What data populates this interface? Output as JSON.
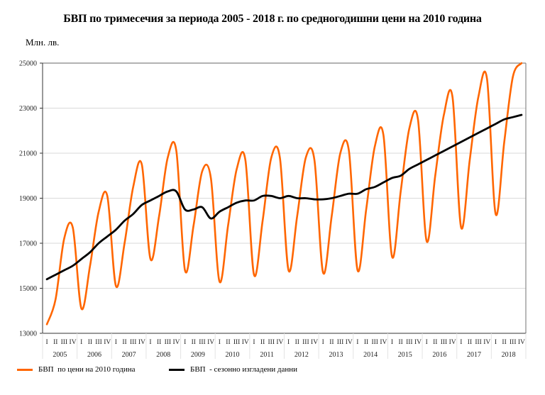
{
  "chart_data": {
    "type": "line",
    "title": "БВП по тримесечия за периода 2005 - 2018 г. по средногодишни цени на 2010 година",
    "ylabel": "Млн. лв.",
    "xlabel": "",
    "ylim": [
      13000,
      25000
    ],
    "yticks": [
      13000,
      15000,
      17000,
      19000,
      21000,
      23000,
      25000
    ],
    "ytick_labels": [
      "13000",
      "15000",
      "17000",
      "19000",
      "21000",
      "23000",
      "25000"
    ],
    "grid": true,
    "legend_position": "bottom",
    "quarter_labels": [
      "I",
      "II",
      "III",
      "IV"
    ],
    "years": [
      "2005",
      "2006",
      "2007",
      "2008",
      "2009",
      "2010",
      "2011",
      "2012",
      "2013",
      "2014",
      "2015",
      "2016",
      "2017",
      "2018"
    ],
    "series": [
      {
        "name": "БВП  по цени на 2010 година",
        "color": "#ff6600",
        "values": [
          13400,
          14500,
          17200,
          17700,
          14100,
          16000,
          18400,
          19100,
          15100,
          17000,
          19500,
          20500,
          16300,
          18200,
          20800,
          21100,
          15800,
          17800,
          20200,
          19900,
          15300,
          17800,
          20300,
          20700,
          15600,
          18000,
          20800,
          20800,
          15800,
          18200,
          20800,
          20700,
          15700,
          18200,
          21000,
          21100,
          15800,
          18500,
          21300,
          21800,
          16400,
          19300,
          22100,
          22500,
          17100,
          20000,
          22700,
          23500,
          17700,
          20700,
          23500,
          24300,
          18300,
          21500,
          24400,
          25000
        ]
      },
      {
        "name": "БВП  - сезонно изгладени данни",
        "color": "#000000",
        "values": [
          15400,
          15600,
          15800,
          16000,
          16300,
          16600,
          17000,
          17300,
          17600,
          18000,
          18300,
          18700,
          18900,
          19100,
          19300,
          19300,
          18500,
          18500,
          18600,
          18100,
          18400,
          18600,
          18800,
          18900,
          18900,
          19100,
          19100,
          19000,
          19100,
          19000,
          19000,
          18950,
          18950,
          19000,
          19100,
          19200,
          19200,
          19400,
          19500,
          19700,
          19900,
          20000,
          20300,
          20500,
          20700,
          20900,
          21100,
          21300,
          21500,
          21700,
          21900,
          22100,
          22300,
          22500,
          22600,
          22700
        ]
      }
    ]
  }
}
